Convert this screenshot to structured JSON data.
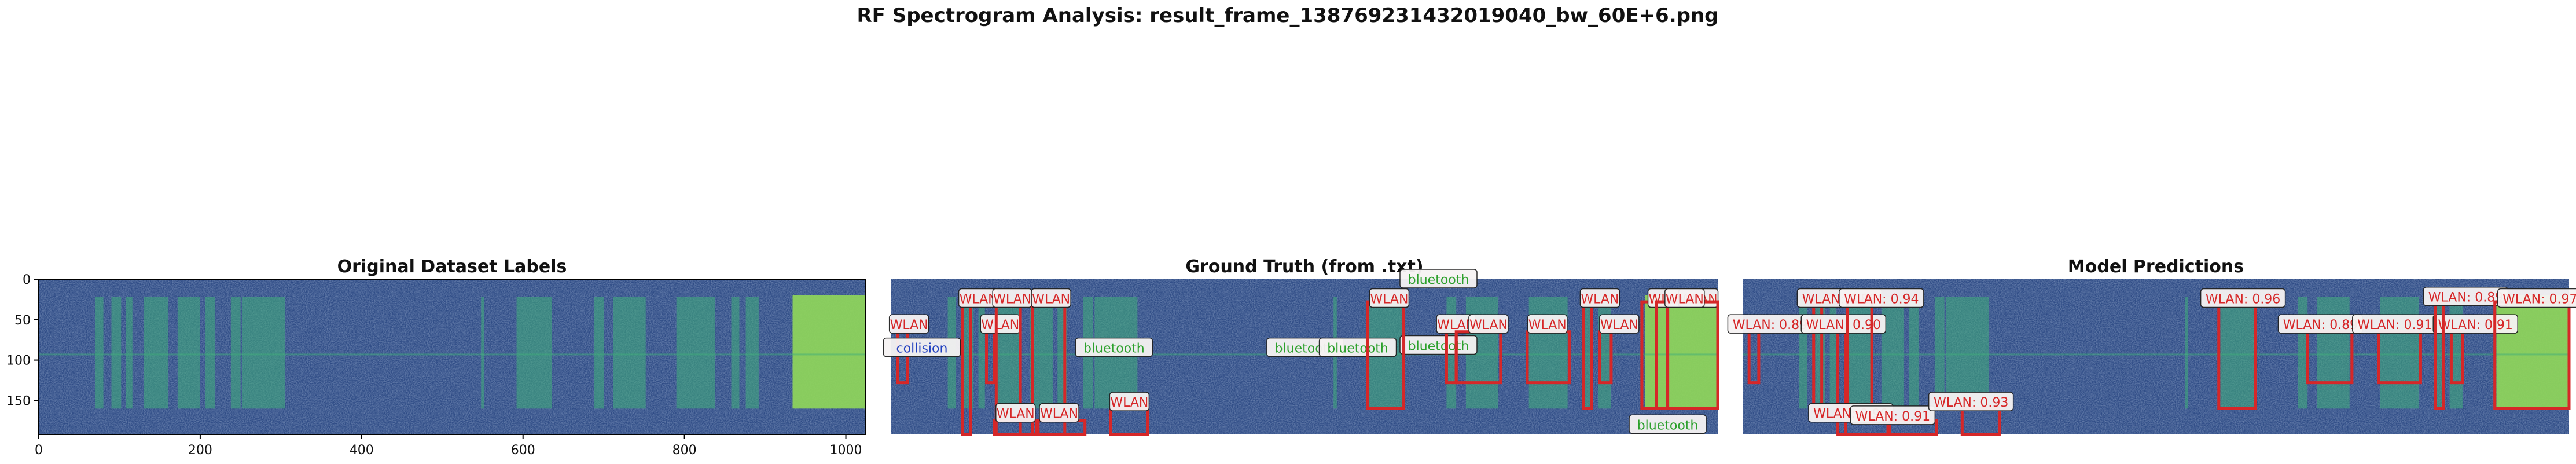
{
  "figure_title": "RF Spectrogram Analysis: result_frame_138769231432019040_bw_60E+6.png",
  "colors": {
    "background_dark": "#2f4c86",
    "signal_green": "#3fae7a",
    "bright_green": "#8fd65a",
    "wlan": "#d62728",
    "bluetooth": "#2ca02c",
    "collision": "#1f3fbf"
  },
  "chart_data": [
    {
      "type": "heatmap",
      "title": "Original Dataset Labels",
      "colormap": "viridis",
      "xlim": [
        0,
        1024
      ],
      "ylim": [
        192,
        0
      ],
      "xticks": [
        0,
        200,
        400,
        600,
        800,
        1000
      ],
      "yticks": [
        0,
        50,
        100,
        150
      ],
      "axes_visible": true,
      "annotations": []
    },
    {
      "type": "heatmap",
      "title": "Ground Truth (from .txt)",
      "colormap": "viridis",
      "xlim": [
        0,
        1024
      ],
      "ylim": [
        192,
        0
      ],
      "axes_visible": false,
      "annotations": [
        {
          "label": "WLAN",
          "x0": 8,
          "x1": 20,
          "y0": 65,
          "y1": 128,
          "label_x": 22,
          "label_y": 56,
          "cls": "wlan"
        },
        {
          "label": "collision",
          "x0": 0,
          "x1": 6,
          "y0": 92,
          "y1": 192,
          "label_x": 38,
          "label_y": 85,
          "cls": "collision"
        },
        {
          "label": "WLAN",
          "x0": 88,
          "x1": 98,
          "y0": 28,
          "y1": 192,
          "label_x": 108,
          "label_y": 24,
          "cls": "wlan"
        },
        {
          "label": "WLAN",
          "x0": 118,
          "x1": 128,
          "y0": 65,
          "y1": 128,
          "label_x": 135,
          "label_y": 56,
          "cls": "wlan"
        },
        {
          "label": "WLAN",
          "x0": 130,
          "x1": 160,
          "y0": 28,
          "y1": 192,
          "label_x": 150,
          "label_y": 24,
          "cls": "wlan"
        },
        {
          "label": "WLAN",
          "x0": 175,
          "x1": 215,
          "y0": 28,
          "y1": 192,
          "label_x": 198,
          "label_y": 24,
          "cls": "wlan"
        },
        {
          "label": "WLAN",
          "x0": 128,
          "x1": 180,
          "y0": 175,
          "y1": 192,
          "label_x": 154,
          "label_y": 166,
          "cls": "wlan"
        },
        {
          "label": "WLAN",
          "x0": 182,
          "x1": 240,
          "y0": 175,
          "y1": 192,
          "label_x": 208,
          "label_y": 166,
          "cls": "wlan"
        },
        {
          "label": "WLAN",
          "x0": 272,
          "x1": 318,
          "y0": 160,
          "y1": 192,
          "label_x": 295,
          "label_y": 152,
          "cls": "wlan"
        },
        {
          "label": "bluetooth",
          "x0": 240,
          "x1": 300,
          "y0": 92,
          "y1": 96,
          "label_x": 276,
          "label_y": 85,
          "cls": "bluetooth"
        },
        {
          "label": "bluetooth",
          "x0": 490,
          "x1": 540,
          "y0": 92,
          "y1": 96,
          "label_x": 513,
          "label_y": 85,
          "cls": "bluetooth"
        },
        {
          "label": "bluetooth",
          "x0": 540,
          "x1": 600,
          "y0": 92,
          "y1": 96,
          "label_x": 578,
          "label_y": 85,
          "cls": "bluetooth"
        },
        {
          "label": "bluetooth",
          "x0": 600,
          "x1": 660,
          "y0": 92,
          "y1": 96,
          "label_x": 678,
          "label_y": 0,
          "cls": "bluetooth"
        },
        {
          "label": "bluetooth",
          "x0": 640,
          "x1": 680,
          "y0": 92,
          "y1": 96,
          "label_x": 678,
          "label_y": 82,
          "cls": "bluetooth"
        },
        {
          "label": "WLAN",
          "x0": 590,
          "x1": 635,
          "y0": 28,
          "y1": 160,
          "label_x": 617,
          "label_y": 24,
          "cls": "wlan"
        },
        {
          "label": "WLAN",
          "x0": 688,
          "x1": 700,
          "y0": 65,
          "y1": 128,
          "label_x": 700,
          "label_y": 56,
          "cls": "wlan"
        },
        {
          "label": "WLAN",
          "x0": 700,
          "x1": 755,
          "y0": 65,
          "y1": 128,
          "label_x": 740,
          "label_y": 56,
          "cls": "wlan"
        },
        {
          "label": "WLAN",
          "x0": 788,
          "x1": 840,
          "y0": 65,
          "y1": 128,
          "label_x": 813,
          "label_y": 56,
          "cls": "wlan"
        },
        {
          "label": "WLAN",
          "x0": 858,
          "x1": 868,
          "y0": 28,
          "y1": 160,
          "label_x": 878,
          "label_y": 24,
          "cls": "wlan"
        },
        {
          "label": "WLAN",
          "x0": 878,
          "x1": 892,
          "y0": 65,
          "y1": 128,
          "label_x": 902,
          "label_y": 56,
          "cls": "wlan"
        },
        {
          "label": "WLAN",
          "x0": 930,
          "x1": 948,
          "y0": 28,
          "y1": 160,
          "label_x": 962,
          "label_y": 24,
          "cls": "wlan"
        },
        {
          "label": "WLAN",
          "x0": 948,
          "x1": 962,
          "y0": 28,
          "y1": 160,
          "label_x": 984,
          "label_y": 24,
          "cls": "wlan"
        },
        {
          "label": "WLAN",
          "x0": 962,
          "x1": 1024,
          "y0": 28,
          "y1": 160,
          "label_x": 1000,
          "label_y": 24,
          "cls": "wlan"
        },
        {
          "label": "WLAN",
          "x0": 962,
          "x1": 1024,
          "y0": 28,
          "y1": 160,
          "label_x": 983,
          "label_y": 24,
          "cls": "wlan"
        },
        {
          "label": "bluetooth",
          "x0": 930,
          "x1": 1024,
          "y0": 170,
          "y1": 192,
          "label_x": 962,
          "label_y": 180,
          "cls": "bluetooth"
        }
      ]
    },
    {
      "type": "heatmap",
      "title": "Model Predictions",
      "colormap": "viridis",
      "xlim": [
        0,
        1024
      ],
      "ylim": [
        192,
        0
      ],
      "axes_visible": false,
      "annotations": [
        {
          "label": "WLAN: 0.89",
          "x0": 8,
          "x1": 20,
          "y0": 65,
          "y1": 128,
          "label_x": 34,
          "label_y": 56,
          "cls": "wlan"
        },
        {
          "label": "WLAN: 0.88",
          "x0": 88,
          "x1": 98,
          "y0": 28,
          "y1": 160,
          "label_x": 120,
          "label_y": 24,
          "cls": "wlan"
        },
        {
          "label": "WLAN: 0.90",
          "x0": 118,
          "x1": 128,
          "y0": 65,
          "y1": 192,
          "label_x": 125,
          "label_y": 56,
          "cls": "wlan"
        },
        {
          "label": "WLAN: 0.94",
          "x0": 130,
          "x1": 160,
          "y0": 28,
          "y1": 160,
          "label_x": 172,
          "label_y": 24,
          "cls": "wlan"
        },
        {
          "label": "WLAN: 0.90",
          "x0": 128,
          "x1": 180,
          "y0": 175,
          "y1": 192,
          "label_x": 134,
          "label_y": 166,
          "cls": "wlan"
        },
        {
          "label": "WLAN: 0.91",
          "x0": 182,
          "x1": 240,
          "y0": 175,
          "y1": 192,
          "label_x": 186,
          "label_y": 169,
          "cls": "wlan"
        },
        {
          "label": "WLAN: 0.93",
          "x0": 272,
          "x1": 318,
          "y0": 160,
          "y1": 192,
          "label_x": 283,
          "label_y": 152,
          "cls": "wlan"
        },
        {
          "label": "WLAN: 0.96",
          "x0": 590,
          "x1": 635,
          "y0": 28,
          "y1": 160,
          "label_x": 620,
          "label_y": 24,
          "cls": "wlan"
        },
        {
          "label": "WLAN: 0.89",
          "x0": 700,
          "x1": 755,
          "y0": 65,
          "y1": 128,
          "label_x": 716,
          "label_y": 56,
          "cls": "wlan"
        },
        {
          "label": "WLAN: 0.91",
          "x0": 788,
          "x1": 840,
          "y0": 65,
          "y1": 128,
          "label_x": 808,
          "label_y": 56,
          "cls": "wlan"
        },
        {
          "label": "WLAN: 0.91",
          "x0": 878,
          "x1": 892,
          "y0": 65,
          "y1": 128,
          "label_x": 908,
          "label_y": 56,
          "cls": "wlan"
        },
        {
          "label": "WLAN: 0.89",
          "x0": 858,
          "x1": 868,
          "y0": 28,
          "y1": 160,
          "label_x": 896,
          "label_y": 22,
          "cls": "wlan"
        },
        {
          "label": "WLAN: 0.97",
          "x0": 932,
          "x1": 1024,
          "y0": 28,
          "y1": 160,
          "label_x": 988,
          "label_y": 24,
          "cls": "wlan"
        }
      ]
    }
  ]
}
